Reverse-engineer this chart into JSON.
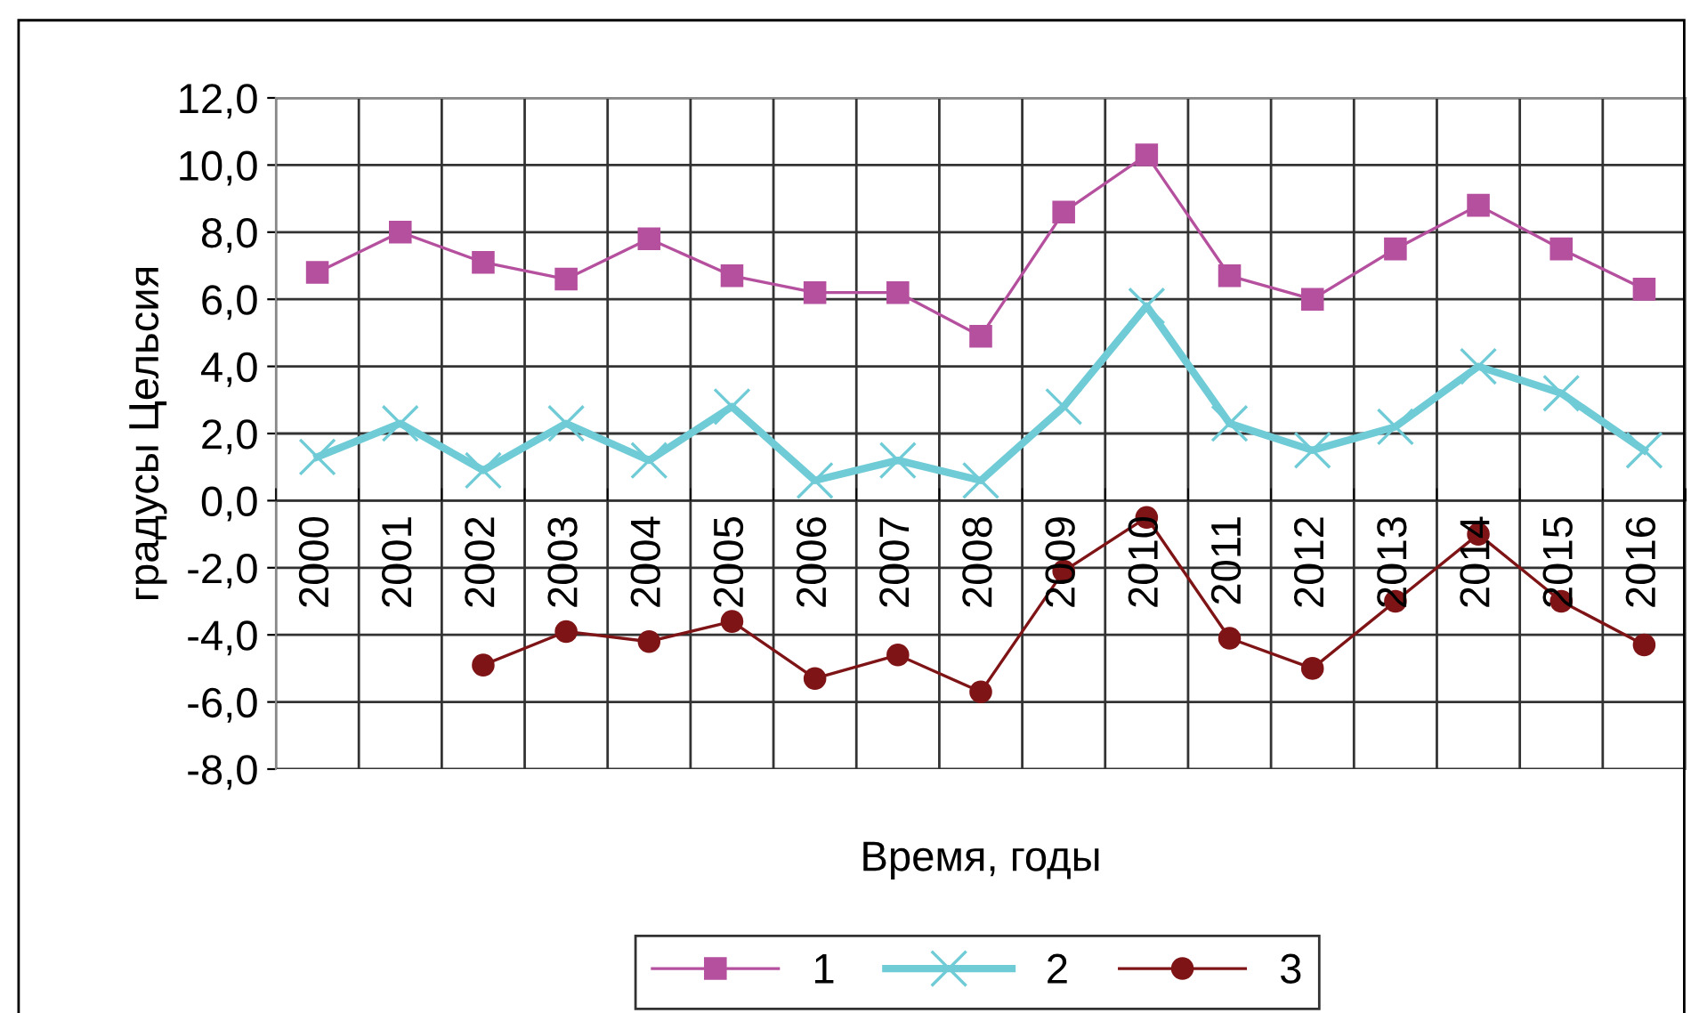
{
  "chart_data": {
    "type": "line",
    "xlabel": "Время, годы",
    "ylabel": "градусы Цельсия",
    "categories": [
      "2000",
      "2001",
      "2002",
      "2003",
      "2004",
      "2005",
      "2006",
      "2007",
      "2008",
      "2009",
      "2010",
      "2011",
      "2012",
      "2013",
      "2014",
      "2015",
      "2016"
    ],
    "series": [
      {
        "name": "1",
        "color": "#b5509f",
        "marker": "square",
        "values": [
          6.8,
          8.0,
          7.1,
          6.6,
          7.8,
          6.7,
          6.2,
          6.2,
          4.9,
          8.6,
          10.3,
          6.7,
          6.0,
          7.5,
          8.8,
          7.5,
          6.3
        ]
      },
      {
        "name": "2",
        "color": "#6fcbd6",
        "marker": "cross",
        "values": [
          1.3,
          2.3,
          0.9,
          2.3,
          1.2,
          2.8,
          0.6,
          1.2,
          0.6,
          2.8,
          5.8,
          2.3,
          1.5,
          2.2,
          4.0,
          3.2,
          1.5
        ]
      },
      {
        "name": "3",
        "color": "#7f1416",
        "marker": "circle",
        "values": [
          null,
          null,
          -4.9,
          -3.9,
          -4.2,
          -3.6,
          -5.3,
          -4.6,
          -5.7,
          -2.1,
          -0.5,
          -4.1,
          -5.0,
          -3.0,
          -1.0,
          -3.0,
          -4.3
        ]
      }
    ],
    "ylim": [
      -8,
      12
    ],
    "yticks": [
      {
        "value": -8,
        "label": "-8,0"
      },
      {
        "value": -6,
        "label": "-6,0"
      },
      {
        "value": -4,
        "label": "-4,0"
      },
      {
        "value": -2,
        "label": "-2,0"
      },
      {
        "value": 0,
        "label": "0,0"
      },
      {
        "value": 2,
        "label": "2,0"
      },
      {
        "value": 4,
        "label": "4,0"
      },
      {
        "value": 6,
        "label": "6,0"
      },
      {
        "value": 8,
        "label": "8,0"
      },
      {
        "value": 10,
        "label": "10,0"
      },
      {
        "value": 12,
        "label": "12,0"
      }
    ],
    "grid": true,
    "legend": "bottom"
  }
}
